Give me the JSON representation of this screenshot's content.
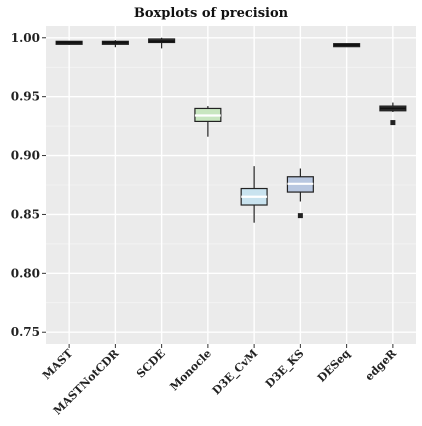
{
  "chart_data": {
    "type": "boxplot",
    "title": "Boxplots of precision",
    "xlabel": "",
    "ylabel": "",
    "ylim": [
      0.74,
      1.01
    ],
    "yticks": [
      "0.75",
      "0.80",
      "0.85",
      "0.90",
      "0.95",
      "1.00"
    ],
    "grid": true,
    "background": "#ebebeb",
    "categories": [
      "MAST",
      "MASTNotCDR",
      "SCDE",
      "Monocle",
      "D3E_CvM",
      "D3E_KS",
      "DESeq",
      "edgeR"
    ],
    "boxes": [
      {
        "category": "MAST",
        "min": 0.994,
        "q1": 0.995,
        "median": 0.996,
        "q3": 0.997,
        "max": 0.997,
        "outliers": [],
        "color": "#3a3a3a"
      },
      {
        "category": "MASTNotCDR",
        "min": 0.992,
        "q1": 0.995,
        "median": 0.996,
        "q3": 0.997,
        "max": 0.998,
        "outliers": [],
        "color": "#3a3a3a"
      },
      {
        "category": "SCDE",
        "min": 0.991,
        "q1": 0.996,
        "median": 0.997,
        "q3": 0.999,
        "max": 1.0,
        "outliers": [],
        "color": "#3a3a3a"
      },
      {
        "category": "Monocle",
        "min": 0.916,
        "q1": 0.929,
        "median": 0.934,
        "q3": 0.94,
        "max": 0.942,
        "outliers": [],
        "color": "#c8e6c0"
      },
      {
        "category": "D3E_CvM",
        "min": 0.843,
        "q1": 0.858,
        "median": 0.865,
        "q3": 0.872,
        "max": 0.891,
        "outliers": [],
        "color": "#c9e3ef"
      },
      {
        "category": "D3E_KS",
        "min": 0.861,
        "q1": 0.869,
        "median": 0.876,
        "q3": 0.882,
        "max": 0.889,
        "outliers": [
          0.849
        ],
        "color": "#b8c7e0"
      },
      {
        "category": "DESeq",
        "min": 0.993,
        "q1": 0.993,
        "median": 0.994,
        "q3": 0.995,
        "max": 0.995,
        "outliers": [],
        "color": "#3a3a3a"
      },
      {
        "category": "edgeR",
        "min": 0.937,
        "q1": 0.938,
        "median": 0.94,
        "q3": 0.942,
        "max": 0.945,
        "outliers": [
          0.928
        ],
        "color": "#3a3a3a"
      }
    ]
  }
}
